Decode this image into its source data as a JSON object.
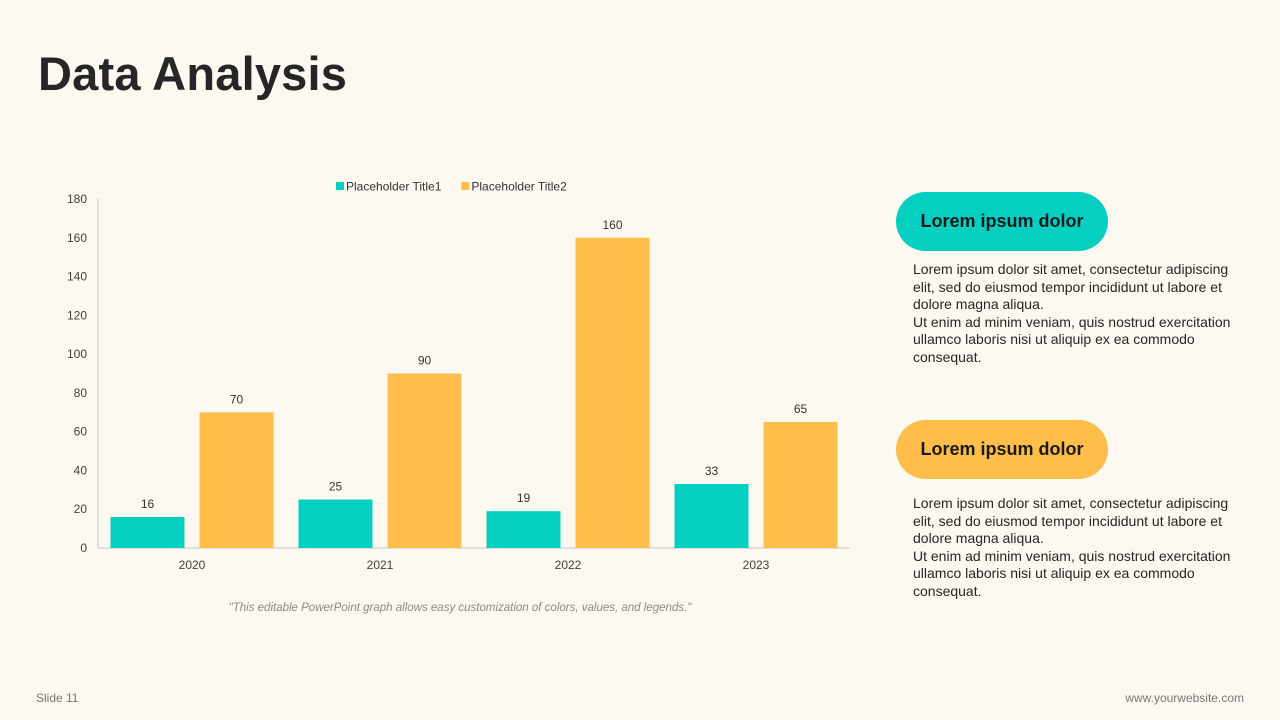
{
  "slide": {
    "title": "Data Analysis",
    "caption": "\"This editable PowerPoint graph allows easy customization of colors, values, and legends.\"",
    "slide_number": "Slide 11",
    "website": "www.yourwebsite.com"
  },
  "colors": {
    "teal": "#05cfc0",
    "amber": "#ffbe4a",
    "background": "#fdf9f1"
  },
  "chart_data": {
    "type": "bar",
    "categories": [
      "2020",
      "2021",
      "2022",
      "2023"
    ],
    "series": [
      {
        "name": "Placeholder Title1",
        "values": [
          16,
          25,
          19,
          33
        ],
        "color": "#05cfc0"
      },
      {
        "name": "Placeholder Title2",
        "values": [
          70,
          90,
          160,
          65
        ],
        "color": "#ffbe4a"
      }
    ],
    "ylim": [
      0,
      180
    ],
    "yticks": [
      0,
      20,
      40,
      60,
      80,
      100,
      120,
      140,
      160,
      180
    ],
    "legend": "top",
    "grid": false,
    "data_labels": true
  },
  "cards": [
    {
      "title": "Lorem ipsum dolor",
      "color": "#05cfc0",
      "line1": "Lorem ipsum dolor sit amet, consectetur adipiscing elit, sed do eiusmod tempor incididunt ut labore et dolore magna aliqua.",
      "line2": "Ut enim ad minim veniam, quis nostrud exercitation ullamco laboris nisi ut aliquip ex ea commodo consequat."
    },
    {
      "title": "Lorem ipsum dolor",
      "color": "#ffbe4a",
      "line1": "Lorem ipsum dolor sit amet, consectetur adipiscing elit, sed do eiusmod tempor incididunt ut labore et dolore magna aliqua.",
      "line2": "Ut enim ad minim veniam, quis nostrud exercitation ullamco laboris nisi ut aliquip ex ea commodo consequat."
    }
  ]
}
